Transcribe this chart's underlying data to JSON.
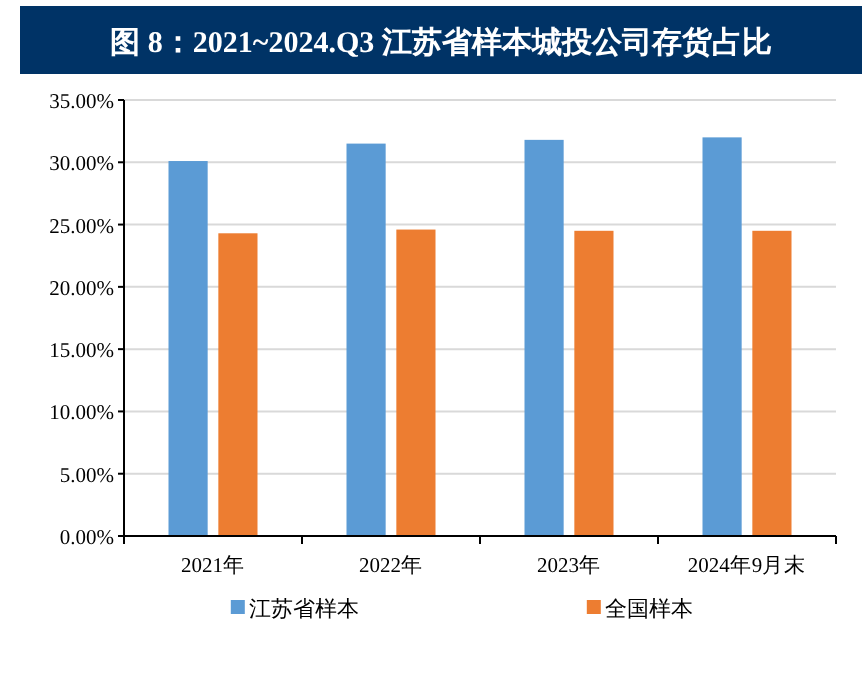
{
  "chart_data": {
    "type": "bar",
    "title": "图 8：2021~2024.Q3 江苏省样本城投公司存货占比",
    "categories": [
      "2021年",
      "2022年",
      "2023年",
      "2024年9月末"
    ],
    "series": [
      {
        "name": "江苏省样本",
        "color": "#5b9bd5",
        "values": [
          30.1,
          31.5,
          31.8,
          32.0
        ]
      },
      {
        "name": "全国样本",
        "color": "#ed7d31",
        "values": [
          24.3,
          24.6,
          24.5,
          24.5
        ]
      }
    ],
    "ylim": [
      0,
      35
    ],
    "yticks": [
      {
        "value": 0,
        "label": "0.00%"
      },
      {
        "value": 5,
        "label": "5.00%"
      },
      {
        "value": 10,
        "label": "10.00%"
      },
      {
        "value": 15,
        "label": "15.00%"
      },
      {
        "value": 20,
        "label": "20.00%"
      },
      {
        "value": 25,
        "label": "25.00%"
      },
      {
        "value": 30,
        "label": "30.00%"
      },
      {
        "value": 35,
        "label": "35.00%"
      }
    ],
    "grid": "y",
    "legend": "bottom"
  }
}
